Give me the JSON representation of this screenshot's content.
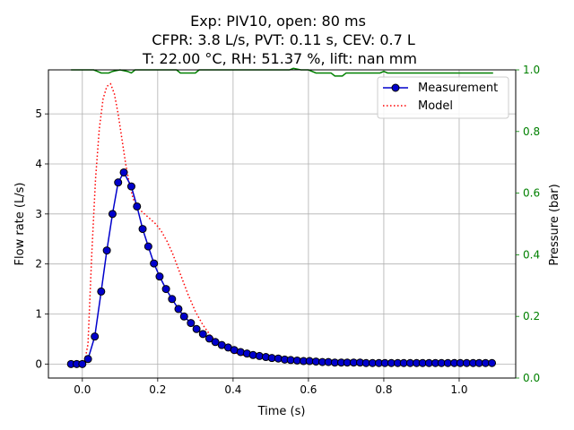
{
  "chart_data": {
    "type": "line",
    "title_lines": [
      "Exp: PIV10, open: 80 ms",
      "CFPR: 3.8 L/s, PVT: 0.11 s, CEV: 0.7 L",
      "T: 22.00 °C, RH: 51.37 %, lift: nan mm"
    ],
    "xlabel": "Time (s)",
    "ylabel": "Flow rate (L/s)",
    "y2label": "Pressure (bar)",
    "xlim": [
      -0.09,
      1.15
    ],
    "ylim": [
      -0.28,
      5.88
    ],
    "y2lim": [
      0.0,
      1.0
    ],
    "xticks": [
      0.0,
      0.2,
      0.4,
      0.6,
      0.8,
      1.0
    ],
    "xtick_labels": [
      "0.0",
      "0.2",
      "0.4",
      "0.6",
      "0.8",
      "1.0"
    ],
    "yticks": [
      0,
      1,
      2,
      3,
      4,
      5
    ],
    "ytick_labels": [
      "0",
      "1",
      "2",
      "3",
      "4",
      "5"
    ],
    "y2ticks": [
      0.0,
      0.2,
      0.4,
      0.6,
      0.8,
      1.0
    ],
    "y2tick_labels": [
      "0.0",
      "0.2",
      "0.4",
      "0.6",
      "0.8",
      "1.0"
    ],
    "grid": true,
    "legend_position": "top-right",
    "colors": {
      "measurement_line": "#0000cc",
      "measurement_marker": "#0000cc",
      "model": "#ff0000",
      "pressure": "#008000",
      "right_axis": "#008000"
    },
    "series": [
      {
        "name": "Measurement",
        "style": "line-with-markers",
        "axis": "left",
        "x": [
          -0.03,
          -0.015,
          0.0,
          0.015,
          0.033,
          0.05,
          0.065,
          0.08,
          0.095,
          0.11,
          0.13,
          0.145,
          0.16,
          0.175,
          0.19,
          0.205,
          0.222,
          0.238,
          0.255,
          0.27,
          0.288,
          0.303,
          0.32,
          0.337,
          0.353,
          0.37,
          0.387,
          0.403,
          0.42,
          0.437,
          0.453,
          0.47,
          0.487,
          0.503,
          0.52,
          0.537,
          0.553,
          0.57,
          0.587,
          0.603,
          0.62,
          0.637,
          0.653,
          0.67,
          0.687,
          0.703,
          0.72,
          0.737,
          0.753,
          0.77,
          0.787,
          0.803,
          0.82,
          0.837,
          0.853,
          0.87,
          0.887,
          0.903,
          0.92,
          0.937,
          0.953,
          0.97,
          0.987,
          1.003,
          1.02,
          1.037,
          1.053,
          1.07,
          1.087
        ],
        "y": [
          0.0,
          0.0,
          0.0,
          0.1,
          0.55,
          1.45,
          2.27,
          3.0,
          3.63,
          3.83,
          3.55,
          3.15,
          2.7,
          2.35,
          2.01,
          1.75,
          1.5,
          1.3,
          1.1,
          0.95,
          0.82,
          0.7,
          0.6,
          0.51,
          0.44,
          0.38,
          0.33,
          0.28,
          0.24,
          0.21,
          0.18,
          0.16,
          0.14,
          0.12,
          0.11,
          0.09,
          0.08,
          0.07,
          0.06,
          0.06,
          0.05,
          0.04,
          0.04,
          0.03,
          0.03,
          0.03,
          0.03,
          0.03,
          0.02,
          0.02,
          0.02,
          0.02,
          0.02,
          0.02,
          0.02,
          0.02,
          0.02,
          0.02,
          0.02,
          0.02,
          0.02,
          0.02,
          0.02,
          0.02,
          0.02,
          0.02,
          0.02,
          0.02,
          0.02
        ]
      },
      {
        "name": "Model",
        "style": "dotted",
        "axis": "left",
        "x": [
          0.005,
          0.015,
          0.025,
          0.035,
          0.045,
          0.055,
          0.065,
          0.075,
          0.085,
          0.095,
          0.105,
          0.115,
          0.125,
          0.135,
          0.15,
          0.165,
          0.18,
          0.195,
          0.21,
          0.225,
          0.24,
          0.26,
          0.28,
          0.3,
          0.32,
          0.34,
          0.36,
          0.38,
          0.4,
          0.42,
          0.44,
          0.46,
          0.48,
          0.5,
          0.52,
          0.55,
          0.6,
          0.65,
          0.7,
          0.75,
          0.8,
          0.85
        ],
        "y": [
          0.0,
          0.4,
          2.2,
          3.7,
          4.7,
          5.3,
          5.55,
          5.6,
          5.4,
          5.0,
          4.5,
          4.0,
          3.6,
          3.3,
          3.1,
          3.0,
          2.9,
          2.8,
          2.65,
          2.45,
          2.2,
          1.8,
          1.4,
          1.05,
          0.78,
          0.57,
          0.42,
          0.31,
          0.24,
          0.19,
          0.16,
          0.13,
          0.11,
          0.09,
          0.08,
          0.06,
          0.04,
          0.03,
          0.02,
          0.02,
          0.01,
          0.01
        ]
      },
      {
        "style": "line",
        "axis": "right",
        "x": [
          -0.03,
          0.0,
          0.03,
          0.04,
          0.05,
          0.07,
          0.08,
          0.1,
          0.12,
          0.13,
          0.14,
          0.2,
          0.25,
          0.26,
          0.3,
          0.31,
          0.35,
          0.4,
          0.45,
          0.5,
          0.55,
          0.56,
          0.58,
          0.6,
          0.62,
          0.64,
          0.66,
          0.67,
          0.69,
          0.7,
          0.75,
          0.78,
          0.79,
          0.8,
          0.81,
          0.85,
          0.9,
          1.0,
          1.09
        ],
        "y": [
          1.0,
          1.0,
          1.0,
          0.995,
          0.99,
          0.99,
          0.995,
          1.0,
          0.995,
          0.99,
          1.0,
          1.0,
          1.0,
          0.99,
          0.99,
          1.0,
          1.0,
          1.0,
          1.0,
          1.0,
          1.0,
          1.005,
          1.0,
          1.0,
          0.99,
          0.99,
          0.99,
          0.98,
          0.98,
          0.99,
          0.99,
          0.99,
          0.99,
          0.995,
          0.99,
          0.99,
          0.99,
          0.99,
          0.99
        ]
      }
    ]
  }
}
